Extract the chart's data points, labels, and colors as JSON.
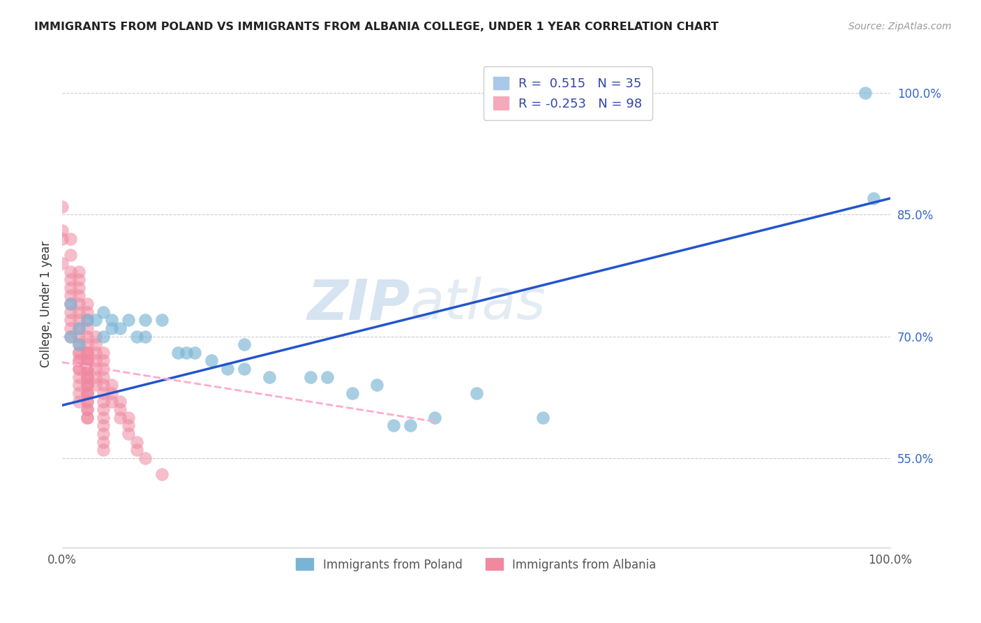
{
  "title": "IMMIGRANTS FROM POLAND VS IMMIGRANTS FROM ALBANIA COLLEGE, UNDER 1 YEAR CORRELATION CHART",
  "source": "Source: ZipAtlas.com",
  "ylabel": "College, Under 1 year",
  "watermark_zip": "ZIP",
  "watermark_atlas": "atlas",
  "poland_color": "#7ab4d4",
  "albania_color": "#f088a0",
  "poland_line_color": "#2255cc",
  "albania_line_color": "#ffaacc",
  "background_color": "#ffffff",
  "xlim": [
    0.0,
    1.0
  ],
  "ylim": [
    0.44,
    1.04
  ],
  "poland_line_x0": 0.0,
  "poland_line_y0": 0.615,
  "poland_line_x1": 1.0,
  "poland_line_y1": 0.87,
  "albania_line_x0": 0.0,
  "albania_line_y0": 0.668,
  "albania_line_x1": 0.45,
  "albania_line_y1": 0.595,
  "poland_scatter_x": [
    0.01,
    0.01,
    0.02,
    0.02,
    0.03,
    0.04,
    0.05,
    0.05,
    0.06,
    0.06,
    0.07,
    0.08,
    0.09,
    0.1,
    0.1,
    0.12,
    0.14,
    0.15,
    0.16,
    0.18,
    0.2,
    0.22,
    0.22,
    0.25,
    0.3,
    0.32,
    0.35,
    0.38,
    0.4,
    0.42,
    0.45,
    0.5,
    0.58,
    0.98,
    0.97
  ],
  "poland_scatter_y": [
    0.74,
    0.7,
    0.71,
    0.69,
    0.72,
    0.72,
    0.73,
    0.7,
    0.71,
    0.72,
    0.71,
    0.72,
    0.7,
    0.72,
    0.7,
    0.72,
    0.68,
    0.68,
    0.68,
    0.67,
    0.66,
    0.66,
    0.69,
    0.65,
    0.65,
    0.65,
    0.63,
    0.64,
    0.59,
    0.59,
    0.6,
    0.63,
    0.6,
    0.87,
    1.0
  ],
  "albania_scatter_x": [
    0.0,
    0.0,
    0.0,
    0.0,
    0.01,
    0.01,
    0.01,
    0.01,
    0.01,
    0.01,
    0.01,
    0.01,
    0.01,
    0.01,
    0.01,
    0.02,
    0.02,
    0.02,
    0.02,
    0.02,
    0.02,
    0.02,
    0.02,
    0.02,
    0.02,
    0.02,
    0.02,
    0.02,
    0.02,
    0.02,
    0.02,
    0.02,
    0.02,
    0.02,
    0.02,
    0.03,
    0.03,
    0.03,
    0.03,
    0.03,
    0.03,
    0.03,
    0.03,
    0.03,
    0.03,
    0.03,
    0.03,
    0.03,
    0.03,
    0.03,
    0.03,
    0.03,
    0.03,
    0.03,
    0.03,
    0.03,
    0.03,
    0.03,
    0.03,
    0.03,
    0.03,
    0.03,
    0.03,
    0.03,
    0.03,
    0.04,
    0.04,
    0.04,
    0.04,
    0.04,
    0.04,
    0.04,
    0.05,
    0.05,
    0.05,
    0.05,
    0.05,
    0.05,
    0.05,
    0.05,
    0.05,
    0.05,
    0.05,
    0.05,
    0.05,
    0.06,
    0.06,
    0.06,
    0.07,
    0.07,
    0.07,
    0.08,
    0.08,
    0.08,
    0.09,
    0.09,
    0.1,
    0.12
  ],
  "albania_scatter_y": [
    0.86,
    0.83,
    0.82,
    0.79,
    0.82,
    0.8,
    0.78,
    0.77,
    0.76,
    0.75,
    0.74,
    0.73,
    0.72,
    0.71,
    0.7,
    0.78,
    0.77,
    0.76,
    0.75,
    0.74,
    0.73,
    0.72,
    0.71,
    0.7,
    0.69,
    0.68,
    0.67,
    0.66,
    0.65,
    0.64,
    0.63,
    0.62,
    0.68,
    0.67,
    0.66,
    0.74,
    0.73,
    0.72,
    0.71,
    0.7,
    0.69,
    0.68,
    0.67,
    0.66,
    0.65,
    0.64,
    0.63,
    0.62,
    0.61,
    0.6,
    0.68,
    0.67,
    0.66,
    0.65,
    0.64,
    0.63,
    0.62,
    0.61,
    0.6,
    0.68,
    0.67,
    0.66,
    0.65,
    0.64,
    0.63,
    0.7,
    0.69,
    0.68,
    0.67,
    0.66,
    0.65,
    0.64,
    0.68,
    0.67,
    0.66,
    0.65,
    0.64,
    0.63,
    0.62,
    0.61,
    0.6,
    0.59,
    0.58,
    0.57,
    0.56,
    0.64,
    0.63,
    0.62,
    0.62,
    0.61,
    0.6,
    0.6,
    0.59,
    0.58,
    0.57,
    0.56,
    0.55,
    0.53
  ]
}
